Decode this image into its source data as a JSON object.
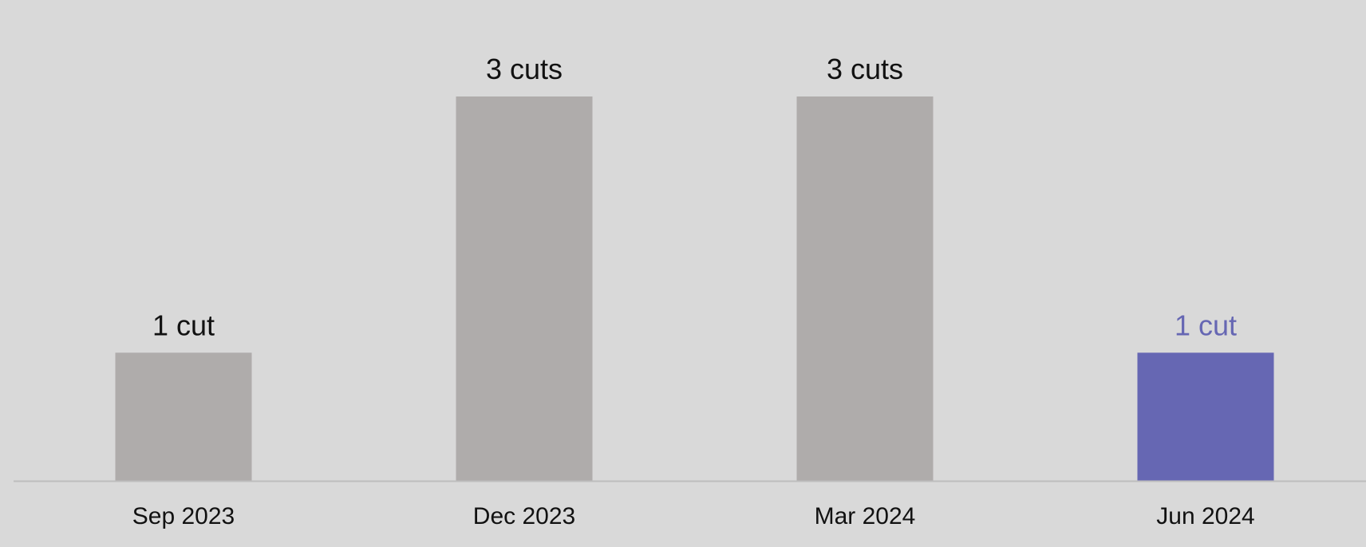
{
  "chart_data": {
    "type": "bar",
    "categories": [
      "Sep 2023",
      "Dec 2023",
      "Mar 2024",
      "Jun 2024"
    ],
    "values": [
      1,
      3,
      3,
      1
    ],
    "data_labels": [
      "1 cut",
      "3 cuts",
      "3 cuts",
      "1 cut"
    ],
    "highlight_index": 3,
    "colors": {
      "bar": "#afacab",
      "highlight": "#6667b3",
      "label": "#111111",
      "axis": "#bdbdbd",
      "background": "#d9d9d9"
    },
    "ylim": [
      0,
      3
    ],
    "grid": false,
    "legend": "none",
    "title": "",
    "xlabel": "",
    "ylabel": ""
  }
}
